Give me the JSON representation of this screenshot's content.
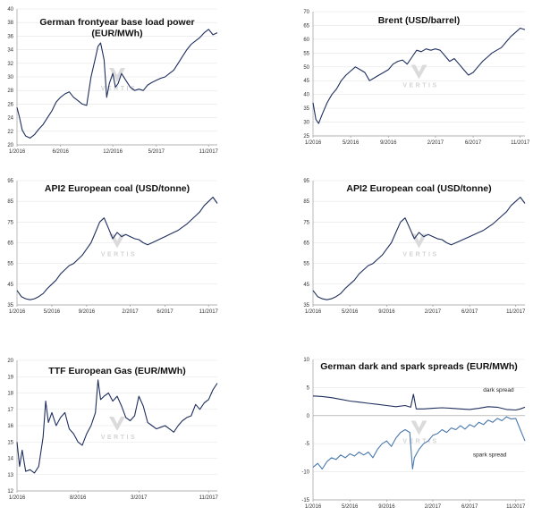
{
  "watermark": {
    "text": "VERTIS",
    "color": "#cfcfcf"
  },
  "colors": {
    "primary": "#1f2f5e",
    "secondary": "#4a79ad"
  },
  "chart_data": [
    {
      "id": "power",
      "type": "line",
      "title": [
        "German frontyear base load power",
        "(EUR/MWh)"
      ],
      "ylim": [
        20,
        40
      ],
      "yticks": [
        20,
        22,
        24,
        26,
        28,
        30,
        32,
        34,
        36,
        38,
        40
      ],
      "xlim": [
        0,
        23
      ],
      "xticks": [
        {
          "v": 0,
          "label": "1/2016"
        },
        {
          "v": 5,
          "label": "6/2016"
        },
        {
          "v": 11,
          "label": "12/2016"
        },
        {
          "v": 16,
          "label": "5/2017"
        },
        {
          "v": 22,
          "label": "11/2017"
        }
      ],
      "series": [
        {
          "x": [
            0,
            0.3,
            0.6,
            1,
            1.5,
            2,
            2.5,
            3,
            3.5,
            4,
            4.5,
            5,
            5.5,
            6,
            6.5,
            7,
            7.5,
            8,
            8.5,
            9,
            9.3,
            9.6,
            10,
            10.3,
            10.6,
            11,
            11.3,
            11.6,
            12,
            12.5,
            13,
            13.5,
            14,
            14.5,
            15,
            15.5,
            16,
            16.5,
            17,
            17.5,
            18,
            18.5,
            19,
            19.5,
            20,
            20.5,
            21,
            21.5,
            22,
            22.5,
            23
          ],
          "values": [
            25.5,
            24,
            22.2,
            21.3,
            21,
            21.5,
            22.3,
            23,
            24,
            25,
            26.3,
            27,
            27.5,
            27.8,
            27,
            26.5,
            26,
            25.8,
            30,
            32.8,
            34.5,
            35,
            32.5,
            27,
            29,
            30.5,
            28.5,
            29,
            30.5,
            29.5,
            28.5,
            28,
            28.2,
            28,
            28.8,
            29.2,
            29.5,
            29.8,
            30,
            30.5,
            31,
            32,
            33,
            34,
            34.8,
            35.3,
            35.8,
            36.5,
            37,
            36.2,
            36.5
          ]
        }
      ]
    },
    {
      "id": "brent",
      "type": "line",
      "title": [
        "Brent (USD/barrel)"
      ],
      "ylim": [
        25,
        70
      ],
      "yticks": [
        25,
        30,
        35,
        40,
        45,
        50,
        55,
        60,
        65,
        70
      ],
      "xlim": [
        0,
        22.5
      ],
      "xticks": [
        {
          "v": 0,
          "label": "1/2016"
        },
        {
          "v": 4,
          "label": "5/2016"
        },
        {
          "v": 8,
          "label": "9/2016"
        },
        {
          "v": 13,
          "label": "2/2017"
        },
        {
          "v": 17,
          "label": "6/2017"
        },
        {
          "v": 22,
          "label": "11/2017"
        }
      ],
      "series": [
        {
          "x": [
            0,
            0.3,
            0.6,
            1,
            1.5,
            2,
            2.5,
            3,
            3.5,
            4,
            4.5,
            5,
            5.5,
            6,
            6.5,
            7,
            7.5,
            8,
            8.5,
            9,
            9.5,
            10,
            10.5,
            11,
            11.5,
            12,
            12.5,
            13,
            13.5,
            14,
            14.5,
            15,
            15.5,
            16,
            16.5,
            17,
            17.5,
            18,
            18.5,
            19,
            19.5,
            20,
            20.5,
            21,
            21.5,
            22,
            22.5
          ],
          "values": [
            37,
            31,
            29.5,
            33,
            37,
            40,
            42,
            45,
            47,
            48.5,
            50,
            49,
            48,
            45,
            46,
            47,
            48,
            49,
            51,
            52,
            52.5,
            51,
            53.5,
            56,
            55.5,
            56.5,
            56,
            56.5,
            56,
            54,
            52,
            53,
            51,
            49,
            47,
            48,
            50,
            52,
            53.5,
            55,
            56,
            57,
            59,
            61,
            62.5,
            64,
            63.5
          ]
        }
      ]
    },
    {
      "id": "coal1",
      "type": "line",
      "title": [
        "API2 European coal (USD/tonne)"
      ],
      "ylim": [
        35,
        95
      ],
      "yticks": [
        35,
        45,
        55,
        65,
        75,
        85,
        95
      ],
      "xlim": [
        0,
        23
      ],
      "xticks": [
        {
          "v": 0,
          "label": "1/2016"
        },
        {
          "v": 4,
          "label": "5/2016"
        },
        {
          "v": 8,
          "label": "9/2016"
        },
        {
          "v": 13,
          "label": "2/2017"
        },
        {
          "v": 17,
          "label": "6/2017"
        },
        {
          "v": 22,
          "label": "11/2017"
        }
      ],
      "series": [
        {
          "x": [
            0,
            0.5,
            1,
            1.5,
            2,
            2.5,
            3,
            3.5,
            4,
            4.5,
            5,
            5.5,
            6,
            6.5,
            7,
            7.5,
            8,
            8.5,
            9,
            9.5,
            10,
            10.5,
            11,
            11.5,
            12,
            12.5,
            13,
            13.5,
            14,
            14.5,
            15,
            15.5,
            16,
            16.5,
            17,
            17.5,
            18,
            18.5,
            19,
            19.5,
            20,
            20.5,
            21,
            21.5,
            22,
            22.5,
            23
          ],
          "values": [
            42,
            39,
            38,
            37.5,
            38,
            39,
            40.5,
            43,
            45,
            47,
            50,
            52,
            54,
            55,
            57,
            59,
            62,
            65,
            70,
            75,
            77,
            72,
            67,
            70,
            68,
            69,
            68,
            67,
            66.5,
            65,
            64,
            65,
            66,
            67,
            68,
            69,
            70,
            71,
            72.5,
            74,
            76,
            78,
            80,
            83,
            85,
            87,
            84
          ]
        }
      ]
    },
    {
      "id": "coal2",
      "type": "line",
      "title": [
        "API2 European coal (USD/tonne)"
      ],
      "ylim": [
        35,
        95
      ],
      "yticks": [
        35,
        45,
        55,
        65,
        75,
        85,
        95
      ],
      "xlim": [
        0,
        23
      ],
      "xticks": [
        {
          "v": 0,
          "label": "1/2016"
        },
        {
          "v": 4,
          "label": "5/2016"
        },
        {
          "v": 8,
          "label": "9/2016"
        },
        {
          "v": 13,
          "label": "2/2017"
        },
        {
          "v": 17,
          "label": "6/2017"
        },
        {
          "v": 22,
          "label": "11/2017"
        }
      ],
      "series": [
        {
          "x": [
            0,
            0.5,
            1,
            1.5,
            2,
            2.5,
            3,
            3.5,
            4,
            4.5,
            5,
            5.5,
            6,
            6.5,
            7,
            7.5,
            8,
            8.5,
            9,
            9.5,
            10,
            10.5,
            11,
            11.5,
            12,
            12.5,
            13,
            13.5,
            14,
            14.5,
            15,
            15.5,
            16,
            16.5,
            17,
            17.5,
            18,
            18.5,
            19,
            19.5,
            20,
            20.5,
            21,
            21.5,
            22,
            22.5,
            23
          ],
          "values": [
            42,
            39,
            38,
            37.5,
            38,
            39,
            40.5,
            43,
            45,
            47,
            50,
            52,
            54,
            55,
            57,
            59,
            62,
            65,
            70,
            75,
            77,
            72,
            67,
            70,
            68,
            69,
            68,
            67,
            66.5,
            65,
            64,
            65,
            66,
            67,
            68,
            69,
            70,
            71,
            72.5,
            74,
            76,
            78,
            80,
            83,
            85,
            87,
            84
          ]
        }
      ]
    },
    {
      "id": "gas",
      "type": "line",
      "title": [
        "TTF European Gas (EUR/MWh)"
      ],
      "ylim": [
        12,
        20
      ],
      "yticks": [
        12,
        13,
        14,
        15,
        16,
        17,
        18,
        19,
        20
      ],
      "xlim": [
        0,
        23
      ],
      "xticks": [
        {
          "v": 0,
          "label": "1/2016"
        },
        {
          "v": 7,
          "label": "8/2016"
        },
        {
          "v": 14,
          "label": "3/2017"
        },
        {
          "v": 22,
          "label": "11/2017"
        }
      ],
      "series": [
        {
          "x": [
            0,
            0.3,
            0.6,
            1,
            1.5,
            2,
            2.5,
            3,
            3.3,
            3.6,
            4,
            4.5,
            5,
            5.5,
            6,
            6.5,
            7,
            7.5,
            8,
            8.5,
            9,
            9.3,
            9.6,
            10,
            10.5,
            11,
            11.5,
            12,
            12.5,
            13,
            13.5,
            14,
            14.5,
            15,
            15.5,
            16,
            16.5,
            17,
            17.5,
            18,
            18.5,
            19,
            19.5,
            20,
            20.5,
            21,
            21.5,
            22,
            22.5,
            23
          ],
          "values": [
            15,
            13.5,
            14.5,
            13.2,
            13.3,
            13.1,
            13.5,
            15.3,
            17.5,
            16.2,
            16.8,
            16,
            16.5,
            16.8,
            15.8,
            15.5,
            15,
            14.8,
            15.5,
            16,
            16.8,
            18.8,
            17.6,
            17.8,
            18,
            17.5,
            17.8,
            17.2,
            16.5,
            16.3,
            16.6,
            17.8,
            17.2,
            16.2,
            16,
            15.8,
            15.9,
            16,
            15.8,
            15.6,
            16,
            16.3,
            16.5,
            16.6,
            17.3,
            17,
            17.4,
            17.6,
            18.2,
            18.6
          ]
        }
      ]
    },
    {
      "id": "spreads",
      "type": "line",
      "title": [
        "German dark and spark spreads (EUR/MWh)"
      ],
      "ylim": [
        -15,
        10
      ],
      "yticks": [
        -15,
        -10,
        -5,
        0,
        5,
        10
      ],
      "xlim": [
        0,
        23
      ],
      "xticks": [
        {
          "v": 0,
          "label": "1/2016"
        },
        {
          "v": 4,
          "label": "5/2016"
        },
        {
          "v": 8,
          "label": "9/2016"
        },
        {
          "v": 13,
          "label": "2/2017"
        },
        {
          "v": 17,
          "label": "6/2017"
        },
        {
          "v": 22,
          "label": "11/2017"
        }
      ],
      "annotations": [
        {
          "text": "dark spread",
          "x": 21.8,
          "y": 4.3
        },
        {
          "text": "spark spread",
          "x": 21,
          "y": -7.3
        }
      ],
      "series": [
        {
          "name": "dark spread",
          "x": [
            0,
            1,
            2,
            3,
            4,
            5,
            6,
            7,
            8,
            9,
            10,
            10.6,
            10.9,
            11.2,
            12,
            13,
            14,
            15,
            16,
            17,
            18,
            19,
            20,
            21,
            22,
            22.5,
            23
          ],
          "values": [
            3.5,
            3.4,
            3.2,
            2.9,
            2.6,
            2.4,
            2.2,
            2,
            1.8,
            1.6,
            1.8,
            1.5,
            3.8,
            1.2,
            1.2,
            1.3,
            1.4,
            1.3,
            1.2,
            1.1,
            1.3,
            1.6,
            1.5,
            1.1,
            1,
            1.2,
            1.5
          ]
        },
        {
          "name": "spark spread",
          "x": [
            0,
            0.5,
            1,
            1.5,
            2,
            2.5,
            3,
            3.5,
            4,
            4.5,
            5,
            5.5,
            6,
            6.5,
            7,
            7.5,
            8,
            8.5,
            9,
            9.5,
            10,
            10.5,
            10.8,
            11,
            11.5,
            12,
            12.5,
            13,
            13.5,
            14,
            14.5,
            15,
            15.5,
            16,
            16.5,
            17,
            17.5,
            18,
            18.5,
            19,
            19.5,
            20,
            20.5,
            21,
            21.5,
            22,
            22.5,
            23
          ],
          "values": [
            -9.2,
            -8.5,
            -9.5,
            -8.2,
            -7.5,
            -7.8,
            -7,
            -7.5,
            -6.8,
            -7.2,
            -6.5,
            -7,
            -6.5,
            -7.5,
            -6,
            -5,
            -4.5,
            -5.5,
            -4,
            -3,
            -2.5,
            -3,
            -9.5,
            -7.5,
            -6,
            -5,
            -4.5,
            -3.5,
            -3.2,
            -2.5,
            -3,
            -2.2,
            -2.5,
            -1.8,
            -2.4,
            -1.6,
            -2,
            -1.2,
            -1.6,
            -0.8,
            -1.2,
            -0.5,
            -0.9,
            -0.2,
            -0.6,
            -0.5,
            -2.5,
            -4.5
          ]
        }
      ]
    }
  ]
}
